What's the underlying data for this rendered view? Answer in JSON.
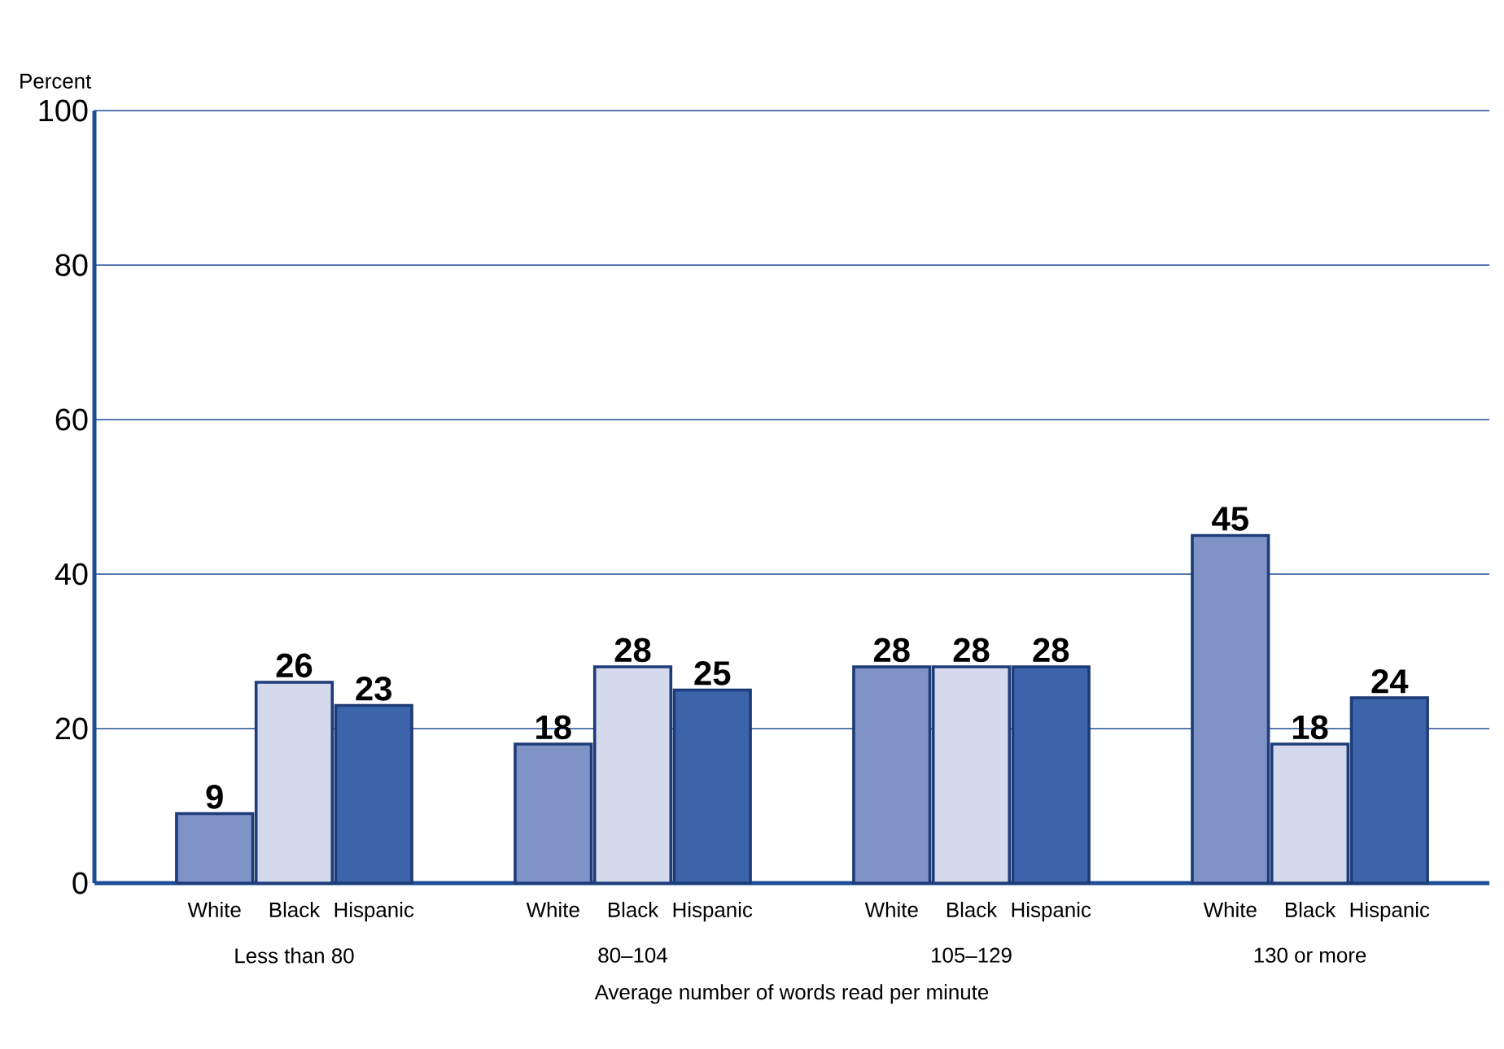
{
  "chart_data": {
    "type": "bar",
    "xlabel": "Average number of words read per minute",
    "ylabel": "Percent",
    "categories": [
      "Less than 80",
      "80–104",
      "105–129",
      "130 or more"
    ],
    "series": [
      {
        "name": "White",
        "color": "#7f93c6",
        "values": [
          9,
          18,
          28,
          45
        ]
      },
      {
        "name": "Black",
        "color": "#d4d9ec",
        "values": [
          26,
          28,
          28,
          18
        ]
      },
      {
        "name": "Hispanic",
        "color": "#3c64aa",
        "values": [
          23,
          25,
          28,
          24
        ]
      }
    ],
    "ylim": [
      0,
      100
    ],
    "yticks": [
      0,
      20,
      40,
      60,
      80,
      100
    ],
    "grid": "y",
    "data_labels": true
  }
}
